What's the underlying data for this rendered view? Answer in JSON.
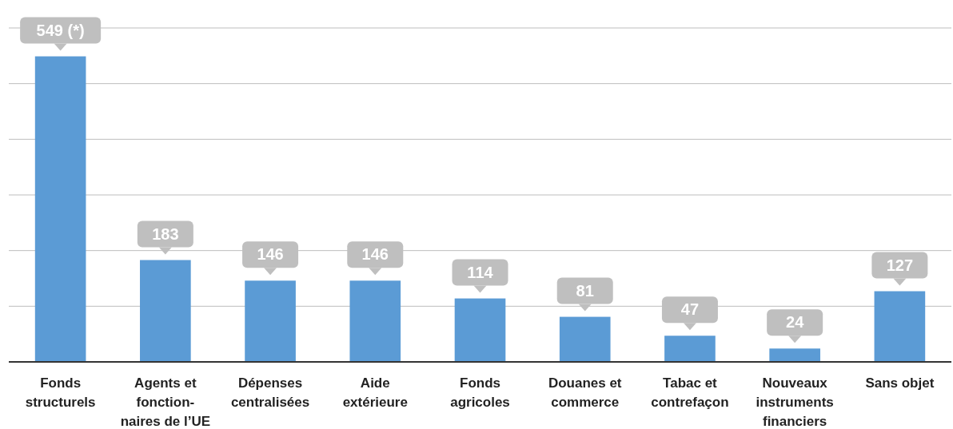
{
  "chart_data": {
    "type": "bar",
    "categories": [
      "Fonds\nstructurels",
      "Agents et\nfonction-\nnaires de l’UE",
      "Dépenses\ncentralisées",
      "Aide\nextérieure",
      "Fonds\nagricoles",
      "Douanes et\ncommerce",
      "Tabac et\ncontrefaçon",
      "Nouveaux\ninstruments\nfinanciers",
      "Sans objet"
    ],
    "values": [
      549,
      183,
      146,
      146,
      114,
      81,
      47,
      24,
      127
    ],
    "value_labels": [
      "549 (*)",
      "183",
      "146",
      "146",
      "114",
      "81",
      "47",
      "24",
      "127"
    ],
    "color": "#5b9bd5",
    "ylim": [
      0,
      600
    ],
    "yticks": [
      {
        "value": 0,
        "label": null
      },
      {
        "value": 100,
        "label": null
      },
      {
        "value": 200,
        "label": null
      },
      {
        "value": 300,
        "label": null
      },
      {
        "value": 400,
        "label": null
      },
      {
        "value": 500,
        "label": null
      },
      {
        "value": 600,
        "label": null
      }
    ],
    "grid": "y",
    "tick_labels": "x"
  }
}
